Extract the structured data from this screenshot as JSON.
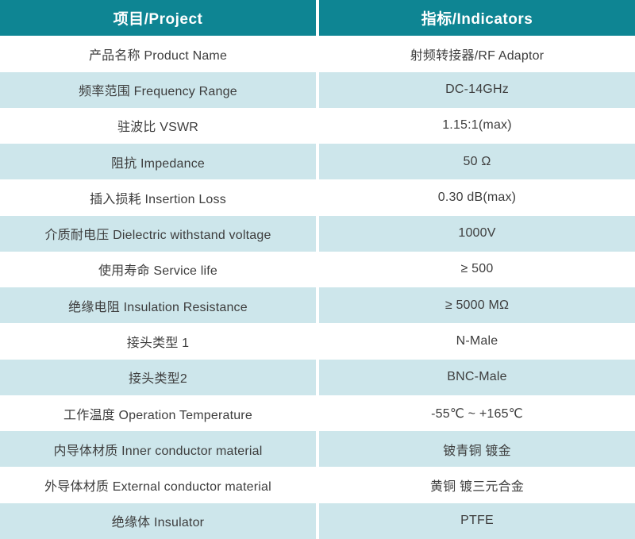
{
  "colors": {
    "header_bg": "#0E8593",
    "header_text": "#FFFFFF",
    "row_white_bg": "#FFFFFF",
    "row_alt_bg": "#CDE6EB",
    "body_text": "#3D3D3D"
  },
  "table": {
    "header": {
      "project": "项目/Project",
      "indicators": "指标/Indicators"
    },
    "rows": [
      {
        "project": "产品名称 Product Name",
        "indicator": "射频转接器/RF Adaptor"
      },
      {
        "project": "频率范围 Frequency Range",
        "indicator": "DC-14GHz"
      },
      {
        "project": "驻波比 VSWR",
        "indicator": "1.15:1(max)"
      },
      {
        "project": "阻抗 Impedance",
        "indicator": "50 Ω"
      },
      {
        "project": "插入损耗 Insertion Loss",
        "indicator": "0.30 dB(max)"
      },
      {
        "project": "介质耐电压 Dielectric withstand voltage",
        "indicator": "1000V"
      },
      {
        "project": "使用寿命 Service life",
        "indicator": "≥ 500"
      },
      {
        "project": "绝缘电阻 Insulation Resistance",
        "indicator": "≥ 5000 MΩ"
      },
      {
        "project": "接头类型 1",
        "indicator": "N-Male"
      },
      {
        "project": "接头类型2",
        "indicator": "BNC-Male"
      },
      {
        "project": "工作温度 Operation Temperature",
        "indicator": "-55℃ ~ +165℃"
      },
      {
        "project": "内导体材质 Inner conductor material",
        "indicator": "铍青铜 镀金"
      },
      {
        "project": "外导体材质 External conductor material",
        "indicator": "黄铜 镀三元合金"
      },
      {
        "project": "绝缘体 Insulator",
        "indicator": "PTFE"
      }
    ]
  }
}
